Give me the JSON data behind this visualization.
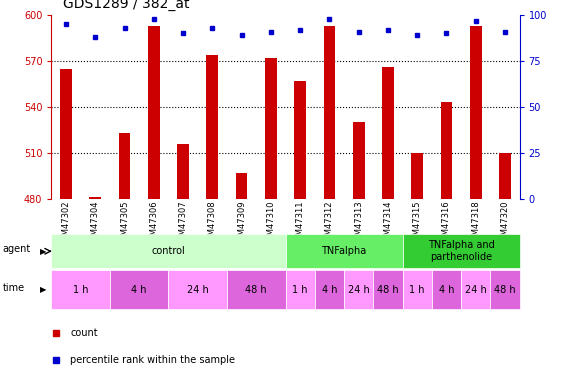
{
  "title": "GDS1289 / 382_at",
  "samples": [
    "GSM47302",
    "GSM47304",
    "GSM47305",
    "GSM47306",
    "GSM47307",
    "GSM47308",
    "GSM47309",
    "GSM47310",
    "GSM47311",
    "GSM47312",
    "GSM47313",
    "GSM47314",
    "GSM47315",
    "GSM47316",
    "GSM47318",
    "GSM47320"
  ],
  "counts": [
    565,
    481,
    523,
    593,
    516,
    574,
    497,
    572,
    557,
    593,
    530,
    566,
    510,
    543,
    593,
    510
  ],
  "percentiles": [
    95,
    88,
    93,
    98,
    90,
    93,
    89,
    91,
    92,
    98,
    91,
    92,
    89,
    90,
    97,
    91
  ],
  "bar_color": "#cc0000",
  "dot_color": "#0000cc",
  "ylim_left": [
    480,
    600
  ],
  "ylim_right": [
    0,
    100
  ],
  "yticks_left": [
    480,
    510,
    540,
    570,
    600
  ],
  "yticks_right": [
    0,
    25,
    50,
    75,
    100
  ],
  "grid_lines": [
    510,
    540,
    570
  ],
  "agent_groups": [
    {
      "label": "control",
      "start": 0,
      "end": 8,
      "color": "#ccffcc"
    },
    {
      "label": "TNFalpha",
      "start": 8,
      "end": 12,
      "color": "#66ee66"
    },
    {
      "label": "TNFalpha and\nparthenolide",
      "start": 12,
      "end": 16,
      "color": "#33cc33"
    }
  ],
  "time_groups": [
    {
      "label": "1 h",
      "start": 0,
      "end": 2,
      "color": "#ff99ff"
    },
    {
      "label": "4 h",
      "start": 2,
      "end": 4,
      "color": "#dd66dd"
    },
    {
      "label": "24 h",
      "start": 4,
      "end": 6,
      "color": "#ff99ff"
    },
    {
      "label": "48 h",
      "start": 6,
      "end": 8,
      "color": "#dd66dd"
    },
    {
      "label": "1 h",
      "start": 8,
      "end": 9,
      "color": "#ff99ff"
    },
    {
      "label": "4 h",
      "start": 9,
      "end": 10,
      "color": "#dd66dd"
    },
    {
      "label": "24 h",
      "start": 10,
      "end": 11,
      "color": "#ff99ff"
    },
    {
      "label": "48 h",
      "start": 11,
      "end": 12,
      "color": "#dd66dd"
    },
    {
      "label": "1 h",
      "start": 12,
      "end": 13,
      "color": "#ff99ff"
    },
    {
      "label": "4 h",
      "start": 13,
      "end": 14,
      "color": "#dd66dd"
    },
    {
      "label": "24 h",
      "start": 14,
      "end": 15,
      "color": "#ff99ff"
    },
    {
      "label": "48 h",
      "start": 15,
      "end": 16,
      "color": "#dd66dd"
    }
  ],
  "legend_count_color": "#cc0000",
  "legend_dot_color": "#0000cc",
  "bar_width": 0.4,
  "background_color": "#ffffff",
  "plot_bg_color": "#ffffff",
  "tick_label_color_left": "#cc0000",
  "tick_label_color_right": "#0000cc",
  "title_fontsize": 10,
  "tick_fontsize": 7,
  "sample_fontsize": 6,
  "annot_fontsize": 7,
  "legend_fontsize": 7
}
